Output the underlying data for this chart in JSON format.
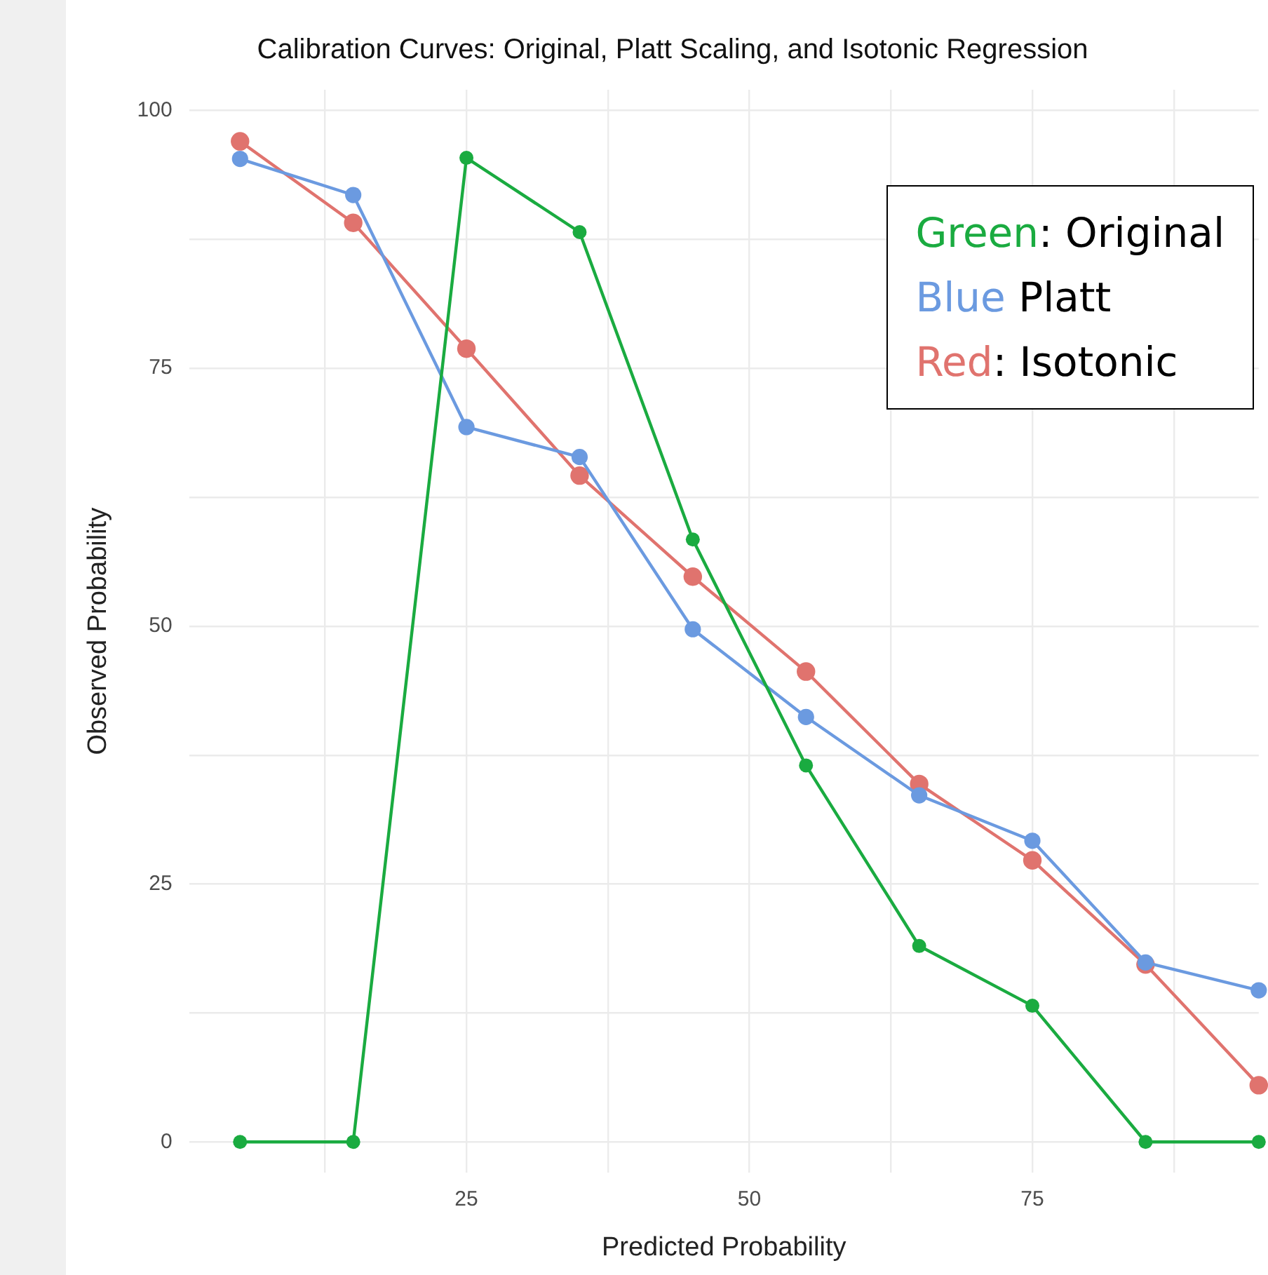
{
  "chart_data": {
    "type": "line",
    "title": "Calibration Curves: Original, Platt Scaling, and Isotonic Regression",
    "xlabel": "Predicted Probability",
    "ylabel": "Observed Probability",
    "x": [
      5,
      15,
      25,
      35,
      45,
      55,
      65,
      75,
      85,
      95
    ],
    "series": [
      {
        "name": "Green: Original",
        "color": "#1aab40",
        "values": [
          0,
          0,
          95.4,
          88.2,
          58.4,
          36.5,
          19.0,
          13.2,
          0,
          0
        ]
      },
      {
        "name": "Blue Platt",
        "color": "#6b9ae0",
        "values": [
          95.3,
          91.8,
          69.3,
          66.4,
          49.7,
          41.2,
          33.6,
          29.2,
          17.4,
          14.7
        ]
      },
      {
        "name": "Red: Isotonic",
        "color": "#e0736e",
        "values": [
          97.0,
          89.1,
          76.9,
          64.6,
          54.8,
          45.6,
          34.7,
          27.3,
          17.2,
          5.5
        ]
      }
    ],
    "xlim": [
      0.5,
      95
    ],
    "ylim": [
      -3,
      102
    ],
    "xticks": [
      {
        "value": 12.5,
        "label": null
      },
      25,
      {
        "value": 37.5,
        "label": null
      },
      50,
      {
        "value": 62.5,
        "label": null
      },
      75,
      {
        "value": 87.5,
        "label": null
      }
    ],
    "yticks": [
      0,
      {
        "value": 12.5,
        "label": null
      },
      25,
      {
        "value": 37.5,
        "label": null
      },
      50,
      {
        "value": 62.5,
        "label": null
      },
      75,
      {
        "value": 87.5,
        "label": null
      },
      100
    ],
    "grid": true,
    "legend": "top right",
    "marker": "circle",
    "line_style": "solid"
  }
}
